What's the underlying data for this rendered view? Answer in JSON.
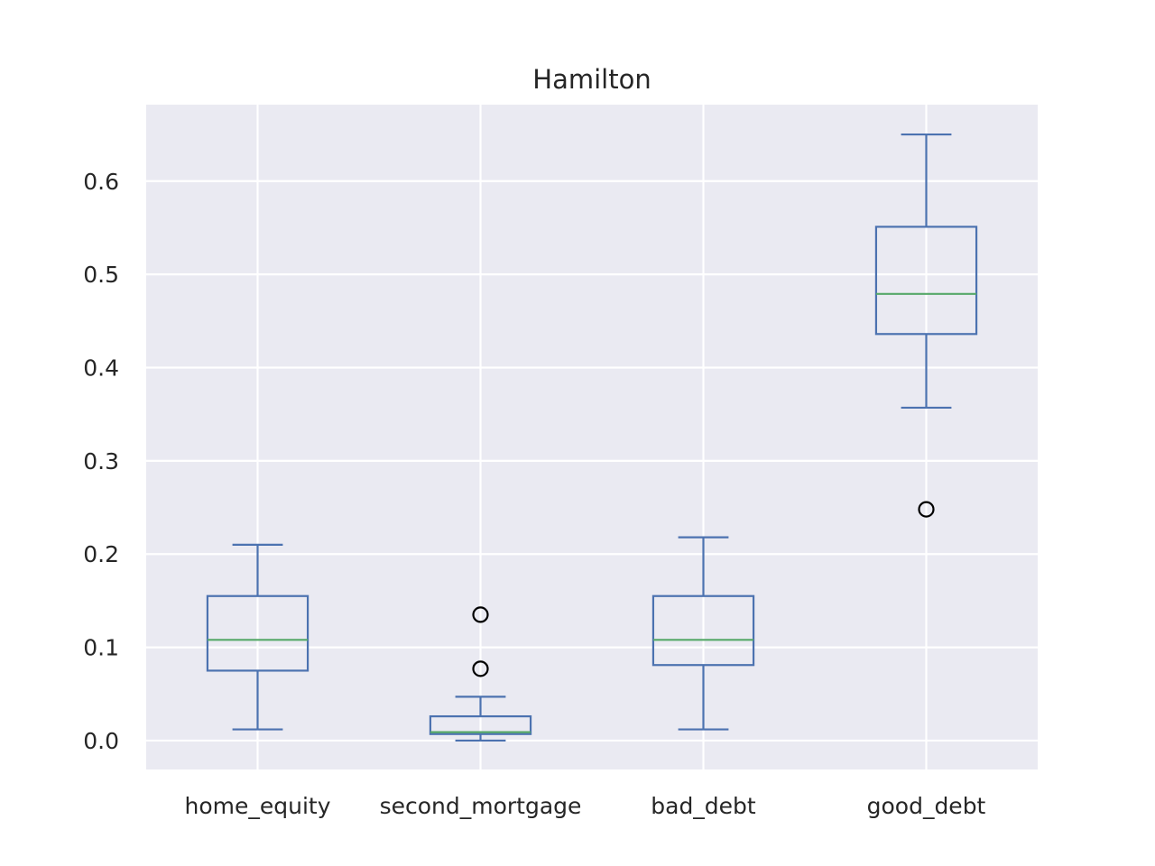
{
  "chart_data": {
    "type": "box",
    "title": "Hamilton",
    "xlabel": "",
    "ylabel": "",
    "categories": [
      "home_equity",
      "second_mortgage",
      "bad_debt",
      "good_debt"
    ],
    "boxes": [
      {
        "category": "home_equity",
        "whisker_low": 0.012,
        "q1": 0.075,
        "median": 0.108,
        "q3": 0.155,
        "whisker_high": 0.21,
        "outliers": []
      },
      {
        "category": "second_mortgage",
        "whisker_low": 0.0,
        "q1": 0.007,
        "median": 0.009,
        "q3": 0.026,
        "whisker_high": 0.047,
        "outliers": [
          0.077,
          0.135
        ]
      },
      {
        "category": "bad_debt",
        "whisker_low": 0.012,
        "q1": 0.081,
        "median": 0.108,
        "q3": 0.155,
        "whisker_high": 0.218,
        "outliers": []
      },
      {
        "category": "good_debt",
        "whisker_low": 0.357,
        "q1": 0.436,
        "median": 0.479,
        "q3": 0.551,
        "whisker_high": 0.65,
        "outliers": [
          0.248
        ]
      }
    ],
    "yticks": [
      0.0,
      0.1,
      0.2,
      0.3,
      0.4,
      0.5,
      0.6
    ],
    "ytick_labels": [
      "0.0",
      "0.1",
      "0.2",
      "0.3",
      "0.4",
      "0.5",
      "0.6"
    ],
    "ylim": [
      -0.031,
      0.682
    ],
    "grid": true,
    "colors": {
      "plot_background": "#eaeaf2",
      "grid": "#ffffff",
      "box": "#4c72b0",
      "median": "#55a868",
      "outlier": "#000000",
      "text": "#262626"
    }
  }
}
